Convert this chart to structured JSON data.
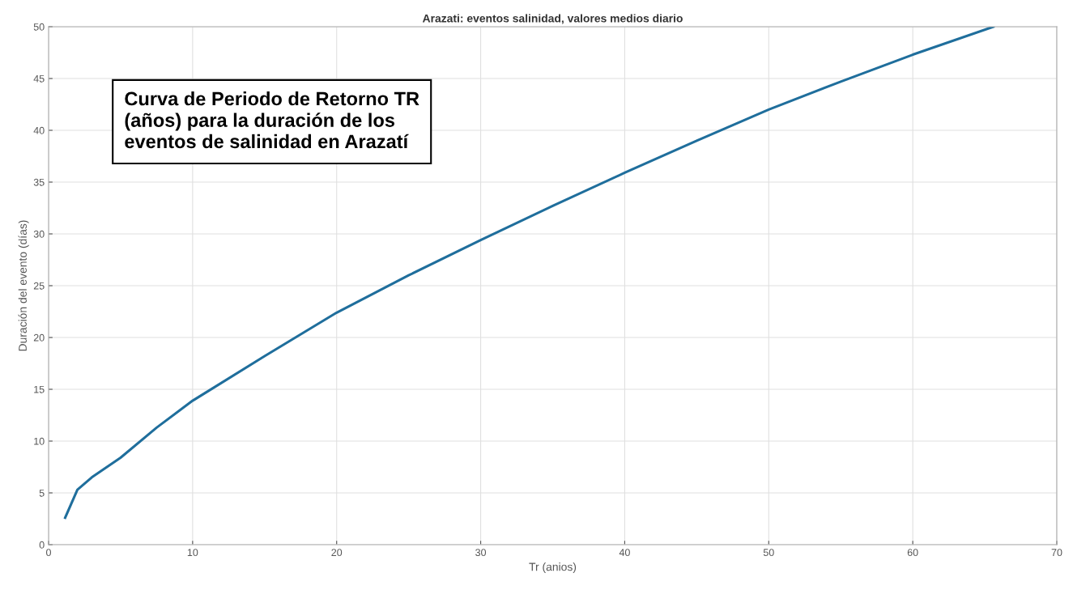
{
  "chart_data": {
    "type": "line",
    "title": "Arazati: eventos salinidad, valores medios diario",
    "xlabel": "Tr (anios)",
    "ylabel": "Duración del evento (días)",
    "annotations": [
      "Curva de Periodo de Retorno TR\n(años) para la duración de los\neventos de salinidad en Arazatí"
    ],
    "x": [
      1.15,
      2,
      3,
      5,
      7.5,
      10,
      15,
      20,
      25,
      30,
      35,
      40,
      45,
      50,
      55,
      60,
      65.6
    ],
    "series": [
      {
        "color": "#1f6e9c",
        "values": [
          2.6,
          5.3,
          6.5,
          8.4,
          11.3,
          13.9,
          18.2,
          22.4,
          26.0,
          29.4,
          32.7,
          35.9,
          39.0,
          42.0,
          44.7,
          47.3,
          50
        ]
      }
    ],
    "xlim": [
      0,
      70
    ],
    "xticks": [
      0,
      10,
      20,
      30,
      40,
      50,
      60,
      70
    ],
    "ylim": [
      0,
      50
    ],
    "yticks": [
      0,
      5,
      10,
      15,
      20,
      25,
      30,
      35,
      40,
      45,
      50
    ],
    "grid": true,
    "line_style": "solid"
  }
}
